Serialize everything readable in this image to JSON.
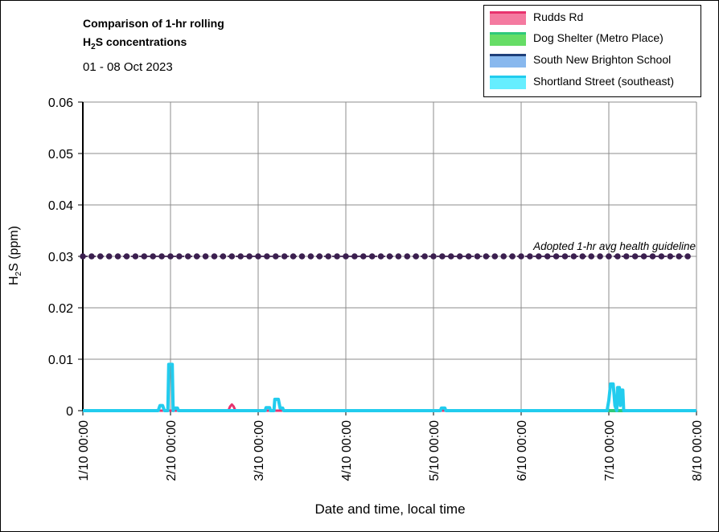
{
  "chart_data": {
    "type": "line",
    "title_line1": "Comparison of 1-hr rolling",
    "title_line2_prefix": "H",
    "title_line2_sub": "2",
    "title_line2_suffix": "S concentrations",
    "subtitle": "01 - 08 Oct 2023",
    "xlabel": "Date and time, local time",
    "ylabel_prefix": "H",
    "ylabel_sub": "2",
    "ylabel_suffix": "S (ppm)",
    "ylim": [
      0,
      0.06
    ],
    "yticks": [
      "0",
      "0.01",
      "0.02",
      "0.03",
      "0.04",
      "0.05",
      "0.06"
    ],
    "ytick_values": [
      0,
      0.01,
      0.02,
      0.03,
      0.04,
      0.05,
      0.06
    ],
    "xlim_days": [
      0,
      7
    ],
    "xticks": [
      "1/10 00:00",
      "2/10 00:00",
      "3/10 00:00",
      "4/10 00:00",
      "5/10 00:00",
      "6/10 00:00",
      "7/10 00:00",
      "8/10 00:00"
    ],
    "grid": true,
    "legend_position": "top-right",
    "guideline": {
      "label": "Adopted 1-hr avg health guideline",
      "value": 0.03,
      "color": "#3b1f4f"
    },
    "series": [
      {
        "name": "Rudds Rd",
        "color": "#e8336e",
        "fill": "#f47aa0",
        "points": [
          [
            0,
            0
          ],
          [
            1.66,
            0
          ],
          [
            1.68,
            0.0008
          ],
          [
            1.7,
            0.0012
          ],
          [
            1.72,
            0.0008
          ],
          [
            1.74,
            0
          ],
          [
            5.85,
            0
          ]
        ]
      },
      {
        "name": "Dog Shelter (Metro Place)",
        "color": "#2fc97a",
        "fill": "#66dd66",
        "points": [
          [
            5.85,
            0
          ],
          [
            7.0,
            0
          ]
        ]
      },
      {
        "name": "South New Brighton School",
        "color": "#1f3f7a",
        "fill": "#88b8ee",
        "points": [
          [
            0,
            0
          ],
          [
            7.0,
            0
          ]
        ]
      },
      {
        "name": "Shortland Street (southeast)",
        "color": "#22ccee",
        "fill": "#66eeff",
        "points": [
          [
            0,
            0
          ],
          [
            0.86,
            0
          ],
          [
            0.88,
            0.001
          ],
          [
            0.91,
            0.001
          ],
          [
            0.93,
            0
          ],
          [
            0.97,
            0
          ],
          [
            0.98,
            0.009
          ],
          [
            1.02,
            0.009
          ],
          [
            1.03,
            0
          ],
          [
            1.05,
            0.0005
          ],
          [
            1.08,
            0.0005
          ],
          [
            1.09,
            0
          ],
          [
            2.08,
            0
          ],
          [
            2.09,
            0.0006
          ],
          [
            2.13,
            0.0006
          ],
          [
            2.14,
            0
          ],
          [
            2.18,
            0
          ],
          [
            2.19,
            0.0022
          ],
          [
            2.23,
            0.0022
          ],
          [
            2.25,
            0.0005
          ],
          [
            2.28,
            0.0005
          ],
          [
            2.29,
            0
          ],
          [
            4.08,
            0
          ],
          [
            4.09,
            0.0005
          ],
          [
            4.13,
            0.0005
          ],
          [
            4.14,
            0
          ],
          [
            5.98,
            0
          ],
          [
            6.0,
            0.002
          ],
          [
            6.02,
            0.0052
          ],
          [
            6.05,
            0.0052
          ],
          [
            6.07,
            0.001
          ],
          [
            6.09,
            0
          ],
          [
            6.1,
            0.0045
          ],
          [
            6.12,
            0.0045
          ],
          [
            6.13,
            0.001
          ],
          [
            6.14,
            0.004
          ],
          [
            6.16,
            0.004
          ],
          [
            6.17,
            0
          ],
          [
            7.0,
            0
          ]
        ]
      }
    ]
  }
}
